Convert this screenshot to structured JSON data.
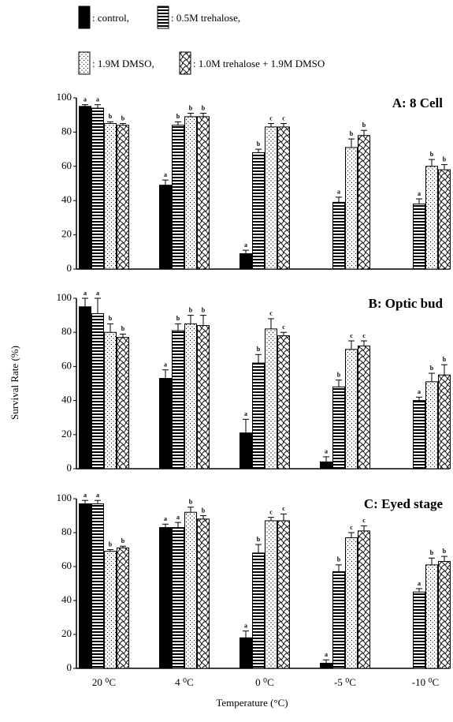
{
  "chart_data": {
    "type": "bar",
    "series": [
      {
        "name": ": control,",
        "pattern": "solid"
      },
      {
        "name": ": 0.5M trehalose,",
        "pattern": "horizontal"
      },
      {
        "name": ": 1.9M DMSO,",
        "pattern": "dots"
      },
      {
        "name": ": 1.0M trehalose + 1.9M DMSO",
        "pattern": "waves"
      }
    ],
    "categories": [
      "20 ⁰C",
      "4 ⁰C",
      "0 ⁰C",
      "-5 ⁰C",
      "-10 ⁰C"
    ],
    "xlabel": "Temperature (°C)",
    "ylabel": "Survival Rate (%)",
    "ylim": [
      0,
      100
    ],
    "yticks": [
      0,
      20,
      40,
      60,
      80,
      100
    ],
    "panels": [
      {
        "title": "A: 8 Cell",
        "series": [
          {
            "values": [
              95,
              49,
              9,
              null,
              null
            ],
            "errors": [
              1,
              3,
              2,
              null,
              null
            ],
            "letters": [
              "a",
              "a",
              "a",
              null,
              null
            ]
          },
          {
            "values": [
              94,
              84,
              68,
              39,
              38
            ],
            "errors": [
              2,
              2,
              2,
              3,
              3
            ],
            "letters": [
              "a",
              "b",
              "b",
              "a",
              "a"
            ]
          },
          {
            "values": [
              85,
              89,
              83,
              71,
              60
            ],
            "errors": [
              1,
              2,
              2,
              5,
              4
            ],
            "letters": [
              "b",
              "b",
              "c",
              "b",
              "b"
            ]
          },
          {
            "values": [
              84,
              89,
              83,
              78,
              58
            ],
            "errors": [
              1,
              2,
              2,
              3,
              3
            ],
            "letters": [
              "b",
              "b",
              "c",
              "b",
              "b"
            ]
          }
        ]
      },
      {
        "title": "B: Optic bud",
        "series": [
          {
            "values": [
              95,
              53,
              21,
              4,
              null
            ],
            "errors": [
              5,
              5,
              8,
              3,
              null
            ],
            "letters": [
              "a",
              "a",
              "a",
              "a",
              null
            ]
          },
          {
            "values": [
              91,
              81,
              62,
              48,
              40
            ],
            "errors": [
              9,
              4,
              5,
              4,
              2
            ],
            "letters": [
              "a",
              "b",
              "b",
              "b",
              "a"
            ]
          },
          {
            "values": [
              80,
              85,
              82,
              70,
              51
            ],
            "errors": [
              5,
              5,
              6,
              5,
              5
            ],
            "letters": [
              "b",
              "b",
              "c",
              "c",
              "b"
            ]
          },
          {
            "values": [
              77,
              84,
              78,
              72,
              55
            ],
            "errors": [
              2,
              6,
              2,
              3,
              6
            ],
            "letters": [
              "b",
              "b",
              "c",
              "c",
              "b"
            ]
          }
        ]
      },
      {
        "title": "C: Eyed stage",
        "series": [
          {
            "values": [
              97,
              83,
              18,
              3,
              null
            ],
            "errors": [
              2,
              2,
              4,
              2,
              null
            ],
            "letters": [
              "a",
              "a",
              "a",
              "a",
              null
            ]
          },
          {
            "values": [
              97,
              83,
              68,
              57,
              45
            ],
            "errors": [
              2,
              3,
              5,
              4,
              2
            ],
            "letters": [
              "a",
              "a",
              "b",
              "b",
              "a"
            ]
          },
          {
            "values": [
              69,
              92,
              87,
              77,
              61
            ],
            "errors": [
              1,
              3,
              2,
              3,
              4
            ],
            "letters": [
              "b",
              "b",
              "c",
              "c",
              "b"
            ]
          },
          {
            "values": [
              71,
              88,
              87,
              81,
              63
            ],
            "errors": [
              1,
              2,
              4,
              3,
              3
            ],
            "letters": [
              "b",
              "b",
              "c",
              "c",
              "b"
            ]
          }
        ]
      }
    ]
  }
}
